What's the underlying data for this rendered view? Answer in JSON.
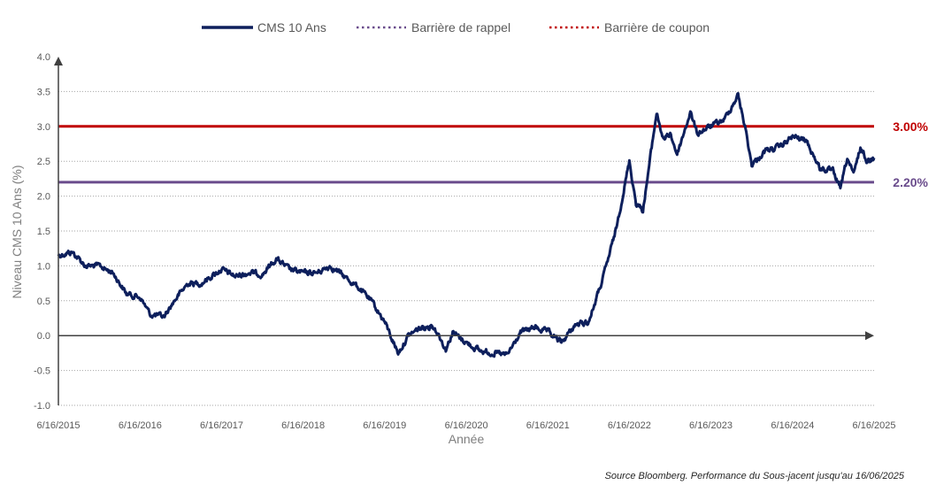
{
  "chart_data": {
    "type": "line",
    "xlabel": "Année",
    "ylabel": "Niveau CMS 10 Ans (%)",
    "ylim": [
      -1.0,
      4.0
    ],
    "yticks": [
      "-1.0",
      "-0.5",
      "0.0",
      "0.5",
      "1.0",
      "1.5",
      "2.0",
      "2.5",
      "3.0",
      "3.5",
      "4.0"
    ],
    "xticks": [
      "6/16/2015",
      "6/16/2016",
      "6/16/2017",
      "6/16/2018",
      "6/16/2019",
      "6/16/2020",
      "6/16/2021",
      "6/16/2022",
      "6/16/2023",
      "6/16/2024",
      "6/16/2025"
    ],
    "grid": true,
    "legend_position": "top",
    "source_note": "Source Bloomberg. Performance du Sous-jacent jusqu'au 16/06/2025",
    "series": [
      {
        "name": "CMS 10 Ans",
        "color": "#0d1f5c",
        "points": [
          [
            "6/16/2015",
            1.15
          ],
          [
            "8/16/2015",
            1.2
          ],
          [
            "10/16/2015",
            1.0
          ],
          [
            "12/16/2015",
            1.0
          ],
          [
            "2/16/2016",
            0.9
          ],
          [
            "4/16/2016",
            0.6
          ],
          [
            "6/16/2016",
            0.55
          ],
          [
            "8/1/2016",
            0.3
          ],
          [
            "10/1/2016",
            0.27
          ],
          [
            "11/16/2016",
            0.5
          ],
          [
            "1/16/2017",
            0.75
          ],
          [
            "3/16/2017",
            0.75
          ],
          [
            "6/16/2017",
            0.95
          ],
          [
            "8/16/2017",
            0.85
          ],
          [
            "10/16/2017",
            0.9
          ],
          [
            "12/16/2017",
            0.88
          ],
          [
            "2/16/2018",
            1.1
          ],
          [
            "4/16/2018",
            0.95
          ],
          [
            "6/16/2018",
            0.9
          ],
          [
            "8/16/2018",
            0.9
          ],
          [
            "10/16/2018",
            1.0
          ],
          [
            "12/16/2018",
            0.85
          ],
          [
            "2/16/2019",
            0.7
          ],
          [
            "4/16/2019",
            0.5
          ],
          [
            "6/16/2019",
            0.2
          ],
          [
            "8/16/2019",
            -0.25
          ],
          [
            "10/1/2019",
            0.0
          ],
          [
            "11/16/2019",
            0.1
          ],
          [
            "1/16/2020",
            0.15
          ],
          [
            "2/16/2020",
            0.0
          ],
          [
            "3/16/2020",
            -0.2
          ],
          [
            "4/16/2020",
            0.05
          ],
          [
            "6/16/2020",
            -0.1
          ],
          [
            "8/16/2020",
            -0.22
          ],
          [
            "10/16/2020",
            -0.25
          ],
          [
            "12/16/2020",
            -0.28
          ],
          [
            "2/16/2021",
            0.05
          ],
          [
            "4/16/2021",
            0.12
          ],
          [
            "6/16/2021",
            0.05
          ],
          [
            "8/16/2021",
            -0.1
          ],
          [
            "10/16/2021",
            0.15
          ],
          [
            "12/16/2021",
            0.2
          ],
          [
            "2/16/2022",
            0.8
          ],
          [
            "4/16/2022",
            1.5
          ],
          [
            "6/16/2022",
            2.5
          ],
          [
            "7/16/2022",
            1.9
          ],
          [
            "8/16/2022",
            1.8
          ],
          [
            "10/16/2022",
            3.2
          ],
          [
            "11/16/2022",
            2.8
          ],
          [
            "12/16/2022",
            2.9
          ],
          [
            "1/16/2023",
            2.6
          ],
          [
            "3/16/2023",
            3.2
          ],
          [
            "4/16/2023",
            2.9
          ],
          [
            "6/16/2023",
            3.0
          ],
          [
            "8/16/2023",
            3.1
          ],
          [
            "10/16/2023",
            3.45
          ],
          [
            "11/16/2023",
            3.0
          ],
          [
            "12/16/2023",
            2.45
          ],
          [
            "2/16/2024",
            2.65
          ],
          [
            "4/16/2024",
            2.7
          ],
          [
            "6/16/2024",
            2.85
          ],
          [
            "8/16/2024",
            2.8
          ],
          [
            "10/16/2024",
            2.4
          ],
          [
            "12/16/2024",
            2.35
          ],
          [
            "1/16/2025",
            2.1
          ],
          [
            "2/16/2025",
            2.55
          ],
          [
            "3/16/2025",
            2.3
          ],
          [
            "4/16/2025",
            2.7
          ],
          [
            "5/16/2025",
            2.5
          ],
          [
            "6/16/2025",
            2.55
          ]
        ]
      },
      {
        "name": "Barrière de rappel",
        "color": "#6a4c8c",
        "value": 2.2,
        "value_label": "2.20%"
      },
      {
        "name": "Barrière de coupon",
        "color": "#c00000",
        "value": 3.0,
        "value_label": "3.00%"
      }
    ]
  }
}
